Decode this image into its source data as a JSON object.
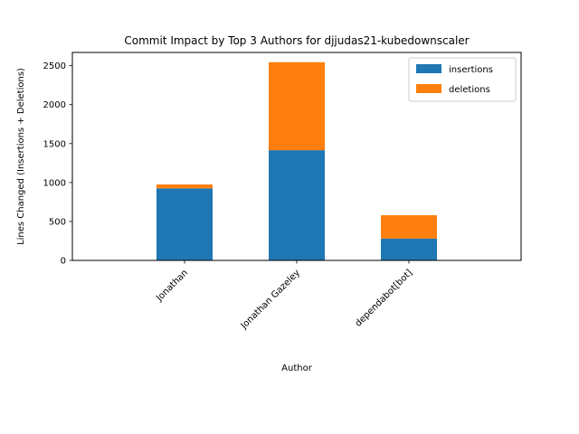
{
  "chart_data": {
    "type": "bar",
    "stacked": true,
    "title": "Commit Impact by Top 3 Authors for djjudas21-kubedownscaler",
    "xlabel": "Author",
    "ylabel": "Lines Changed (Insertions + Deletions)",
    "categories": [
      "Jonathan",
      "Jonathan Gazeley",
      "dependabot[bot]"
    ],
    "series": [
      {
        "name": "insertions",
        "values": [
          925,
          1415,
          280
        ],
        "color": "#1f77b4"
      },
      {
        "name": "deletions",
        "values": [
          50,
          1130,
          300
        ],
        "color": "#ff7f0e"
      }
    ],
    "yticks": [
      "0",
      "500",
      "1000",
      "1500",
      "2000",
      "2500"
    ],
    "ylim": [
      0,
      2670
    ],
    "grid": false,
    "legend_position": "top-right"
  }
}
